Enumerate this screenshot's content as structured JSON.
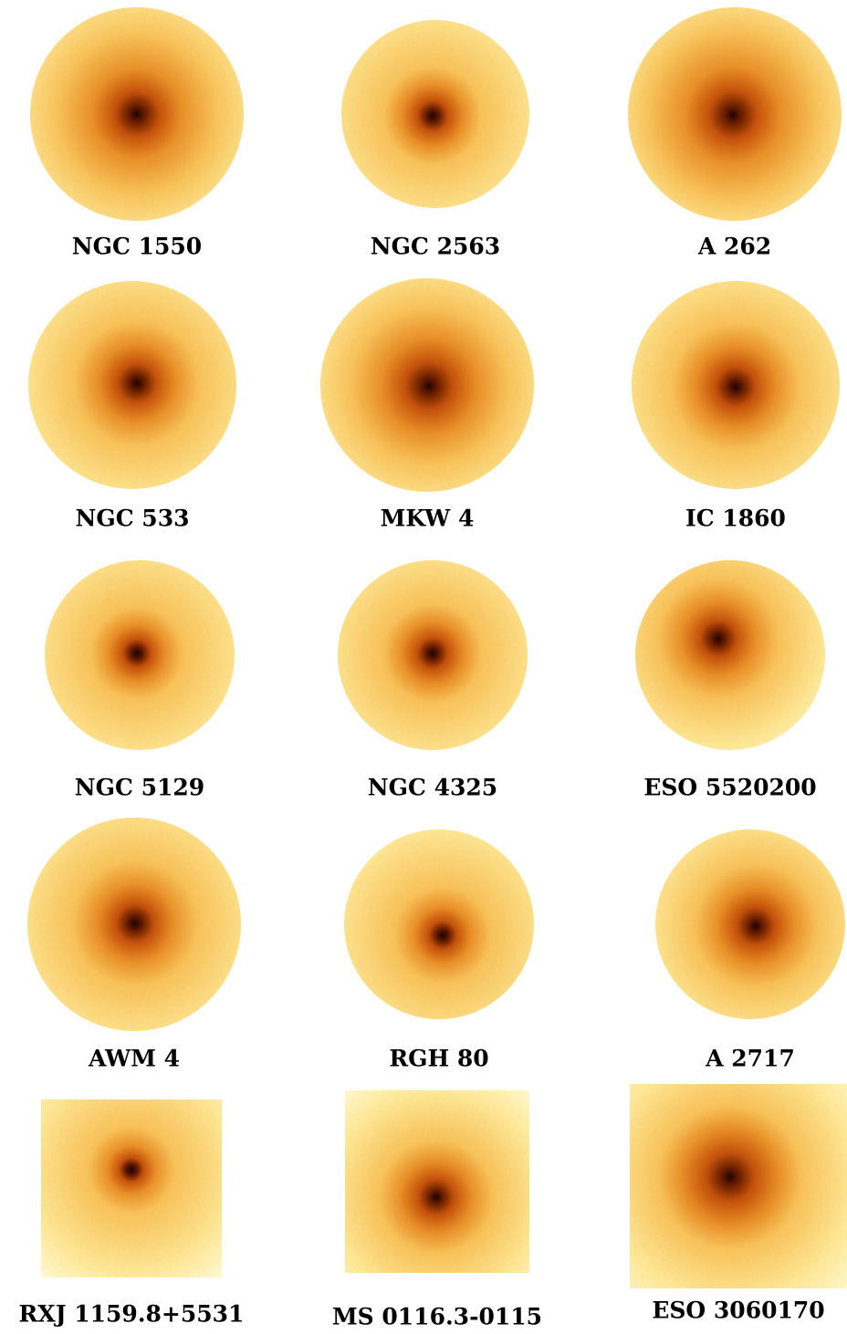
{
  "panels": [
    {
      "label": "NGC 1550"
    },
    {
      "label": "NGC 2563"
    },
    {
      "label": "A 262"
    },
    {
      "label": "NGC 533"
    },
    {
      "label": "MKW 4"
    },
    {
      "label": "IC 1860"
    },
    {
      "label": "NGC 5129"
    },
    {
      "label": "NGC 4325"
    },
    {
      "label": "ESO 5520200"
    },
    {
      "label": "AWM 4"
    },
    {
      "label": "RGH 80"
    },
    {
      "label": "A 2717"
    },
    {
      "label": "RXJ 1159.8+5531"
    },
    {
      "label": "MS 0116.3-0115"
    },
    {
      "label": "ESO 3060170"
    }
  ]
}
